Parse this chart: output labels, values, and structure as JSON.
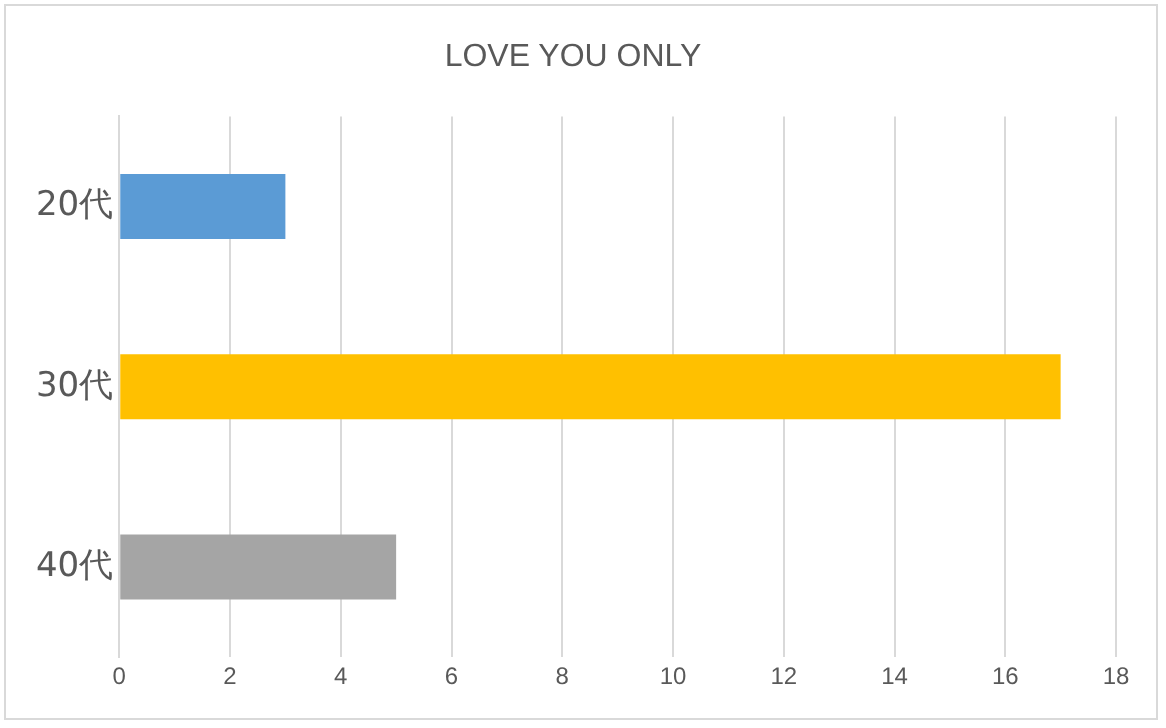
{
  "chart_data": {
    "type": "bar",
    "title": "LOVE YOU ONLY",
    "orientation": "horizontal",
    "categories": [
      "20代",
      "30代",
      "40代"
    ],
    "values": [
      3,
      17,
      5
    ],
    "colors": [
      "#5b9bd5",
      "#ffc000",
      "#a5a5a5"
    ],
    "xlim": [
      0,
      18
    ],
    "xticks": [
      0,
      2,
      4,
      6,
      8,
      10,
      12,
      14,
      16,
      18
    ],
    "grid": "x",
    "legend": false
  }
}
